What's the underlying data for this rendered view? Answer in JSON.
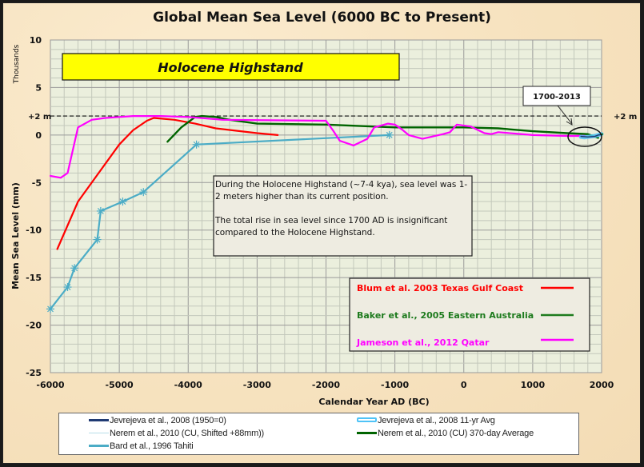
{
  "chart_data": {
    "type": "line",
    "title": "Global Mean Sea Level (6000 BC to Present)",
    "xlabel": "Calendar Year AD (BC)",
    "ylabel": "Mean Sea Level (mm)",
    "ylabel_units_note": "Thousands",
    "xlim": [
      -6000,
      2000
    ],
    "ylim": [
      -25,
      10
    ],
    "x_ticks": [
      "-6000",
      "-5000",
      "-4000",
      "-3000",
      "-2000",
      "-1000",
      "0",
      "1000",
      "2000"
    ],
    "y_ticks": [
      "10",
      "5",
      "0",
      "-5",
      "-10",
      "-15",
      "-20",
      "-25"
    ],
    "x_tick_values": [
      -6000,
      -5000,
      -4000,
      -3000,
      -2000,
      -1000,
      0,
      1000,
      2000
    ],
    "y_tick_values": [
      10,
      5,
      0,
      -5,
      -10,
      -15,
      -20,
      -25
    ],
    "grid": true,
    "reference_line": {
      "y": 2,
      "label_left": "+2 m",
      "label_right": "+2 m",
      "style": "dashed"
    },
    "series": [
      {
        "name": "Blum et al. 2003 Texas Gulf Coast",
        "color": "#ff0000",
        "x": [
          -5900,
          -5600,
          -5300,
          -5000,
          -4800,
          -4600,
          -4500,
          -4200,
          -3900,
          -3600,
          -3000,
          -2700
        ],
        "y": [
          -12,
          -7,
          -4,
          -1,
          0.5,
          1.5,
          1.8,
          1.6,
          1.2,
          0.7,
          0.2,
          0
        ]
      },
      {
        "name": "Baker et al., 2005 Eastern Australia",
        "color": "#006400",
        "x": [
          -4300,
          -4100,
          -3900,
          -3800,
          -3600,
          -3400,
          -3000,
          -2000,
          -1000,
          0,
          500,
          1000,
          1500,
          1800,
          1950
        ],
        "y": [
          -0.7,
          0.8,
          1.9,
          2.0,
          1.9,
          1.6,
          1.2,
          1.1,
          0.8,
          0.8,
          0.7,
          0.4,
          0.2,
          0.1,
          -0.3
        ]
      },
      {
        "name": "Jameson et al., 2012 Qatar",
        "color": "#ff00ff",
        "x": [
          -6000,
          -5850,
          -5750,
          -5600,
          -5400,
          -5200,
          -5000,
          -4800,
          -4600,
          -4400,
          -4000,
          -3500,
          -2000,
          -1900,
          -1800,
          -1600,
          -1400,
          -1300,
          -1100,
          -1000,
          -900,
          -800,
          -600,
          -300,
          -200,
          -100,
          100,
          300,
          400,
          500,
          1000,
          1500,
          1750
        ],
        "y": [
          -4.3,
          -4.5,
          -4,
          0.8,
          1.6,
          1.8,
          1.9,
          2,
          2,
          2,
          1.9,
          1.6,
          1.5,
          0.5,
          -0.6,
          -1.1,
          -0.4,
          0.8,
          1.2,
          1.1,
          0.6,
          0,
          -0.4,
          0.1,
          0.3,
          1.1,
          0.9,
          0.2,
          0.1,
          0.3,
          0,
          -0.1,
          -0.1
        ]
      },
      {
        "name": "Bard et al., 1996 Tahiti",
        "color": "#4bacc6",
        "marker": "asterisk",
        "x": [
          -6000,
          -5750,
          -5650,
          -5320,
          -5270,
          -4950,
          -4650,
          -3880,
          -1080
        ],
        "y": [
          -18.3,
          -16,
          -14,
          -11,
          -8,
          -7,
          -6,
          -1,
          0
        ]
      },
      {
        "name": "Jevrejeva et al., 2008 11-yr Avg",
        "color": "#4fc3f7",
        "x": [
          1700,
          1750,
          1800,
          1850,
          1900,
          1950,
          2000
        ],
        "y": [
          -0.2,
          -0.25,
          -0.2,
          -0.15,
          -0.1,
          0,
          0.1
        ]
      },
      {
        "name": "Jevrejeva et al., 2008 (1950=0)",
        "color": "#1f3a73",
        "x": [
          1700,
          1800,
          1900,
          1950,
          2000
        ],
        "y": [
          -0.15,
          -0.2,
          -0.15,
          0,
          0.05
        ]
      },
      {
        "name": "Nerem et al., 2010 (CU) 370-day Average",
        "color": "#006400",
        "x": [
          1993,
          2013
        ],
        "y": [
          0.05,
          0.1
        ]
      },
      {
        "name": "Nerem et al., 2010 (CU, Shifted +88mm))",
        "color": "#b7dde8",
        "x": [
          1993,
          2013
        ],
        "y": [
          0.05,
          0.1
        ]
      }
    ],
    "annotations": [
      "Holocene Highstand",
      "1700-2013",
      "During the Holocene Highstand (~7-4 kya), sea level was 1-2 meters higher than its current position.",
      "The total rise in sea level since 1700 AD is insignificant compared to the Holocene Highstand."
    ]
  },
  "banner": {
    "text": "Holocene Highstand",
    "color": "#ffff00"
  },
  "callout": {
    "text": "1700-2013"
  },
  "note": {
    "paragraph1": "During the Holocene Highstand (~7-4 kya), sea level was 1-2 meters higher than its current position.",
    "paragraph2": "The total rise in sea level since 1700 AD is insignificant compared to the Holocene Highstand."
  },
  "inner_legend": [
    {
      "label": "Blum et al. 2003 Texas Gulf Coast",
      "color": "#ff0000"
    },
    {
      "label": "Baker et al., 2005 Eastern Australia",
      "color": "#1e7b1e"
    },
    {
      "label": "Jameson et al., 2012 Qatar",
      "color": "#ff00ff"
    }
  ],
  "bottom_legend": [
    {
      "label": "Jevrejeva et al., 2008 (1950=0)",
      "color": "#1f3a73"
    },
    {
      "label": "Jevrejeva et al., 2008 11-yr Avg",
      "color": "#4fc3f7"
    },
    {
      "label": "Nerem et al., 2010 (CU, Shifted +88mm))",
      "color": "#b7dde8"
    },
    {
      "label": "Nerem et al., 2010 (CU) 370-day Average",
      "color": "#006400"
    },
    {
      "label": "Bard et al., 1996 Tahiti",
      "color": "#4bacc6"
    }
  ]
}
